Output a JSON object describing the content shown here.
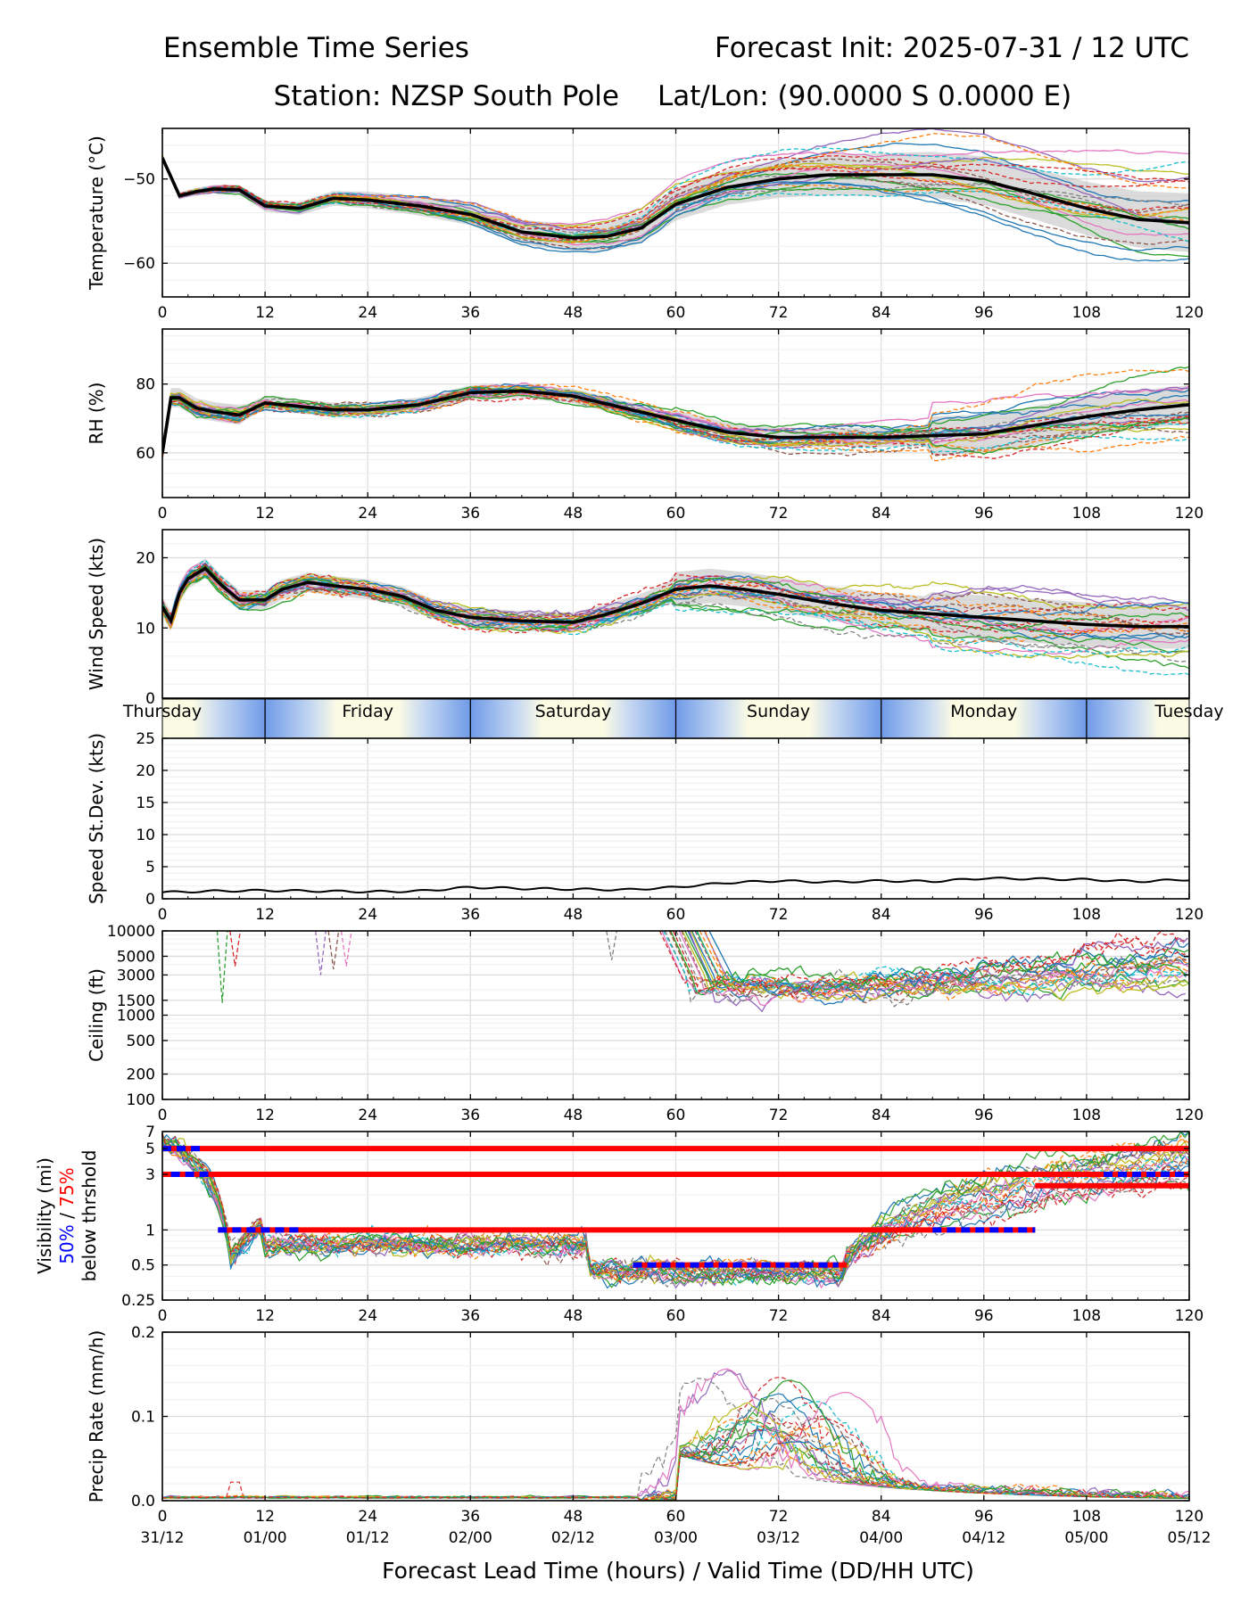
{
  "header": {
    "left_title": "Ensemble Time Series",
    "right_title": "Forecast Init: 2025-07-31 / 12 UTC",
    "station": "Station: NZSP South Pole",
    "latlon": "Lat/Lon: (90.0000 S 0.0000 E)"
  },
  "x_axis": {
    "label": "Forecast Lead Time (hours) / Valid Time (DD/HH UTC)",
    "ticks": [
      "0",
      "12",
      "24",
      "36",
      "48",
      "60",
      "72",
      "84",
      "96",
      "108",
      "120"
    ],
    "valid_times": [
      "31/12",
      "01/00",
      "01/12",
      "02/00",
      "02/12",
      "03/00",
      "03/12",
      "04/00",
      "04/12",
      "05/00",
      "05/12"
    ],
    "range": [
      0,
      120
    ]
  },
  "day_bar": {
    "days": [
      "Thursday",
      "Friday",
      "Saturday",
      "Sunday",
      "Monday",
      "Tuesday"
    ],
    "colors": {
      "night": "#6f9be8",
      "day": "#fbfbe4"
    }
  },
  "visibility_legend": {
    "p50": "50%",
    "sep": " / ",
    "p75": "75%",
    "p50_color": "#0000ff",
    "p75_color": "#ff0000"
  },
  "member_colors": [
    "#1f77b4",
    "#ff7f0e",
    "#2ca02c",
    "#d62728",
    "#9467bd",
    "#8c564b",
    "#e377c2",
    "#7f7f7f",
    "#bcbd22",
    "#17becf"
  ],
  "chart_data": [
    {
      "type": "line",
      "title": "",
      "ylabel": "Temperature (°C)",
      "yticks": [
        "−50",
        "−60"
      ],
      "ylim": [
        -64,
        -44
      ],
      "grid": true,
      "mean_series": {
        "x": [
          0,
          2,
          4,
          6,
          9,
          12,
          16,
          20,
          24,
          30,
          36,
          42,
          48,
          52,
          56,
          60,
          66,
          72,
          78,
          84,
          90,
          96,
          102,
          108,
          114,
          120
        ],
        "values": [
          -47.5,
          -52,
          -51.5,
          -51.2,
          -51.3,
          -53.2,
          -53.5,
          -52.3,
          -52.5,
          -53.2,
          -54.2,
          -56.3,
          -57,
          -56.8,
          -55.8,
          -53,
          -51,
          -50,
          -49.5,
          -49.5,
          -49.5,
          -50.2,
          -51.8,
          -53.5,
          -54.8,
          -55.2
        ]
      },
      "spread_band": true,
      "members": 24
    },
    {
      "type": "line",
      "title": "",
      "ylabel": "RH (%)",
      "yticks": [
        "80",
        "60"
      ],
      "ylim": [
        47,
        96
      ],
      "grid": true,
      "mean_series": {
        "x": [
          0,
          1,
          2,
          4,
          6,
          9,
          12,
          16,
          20,
          24,
          30,
          36,
          42,
          48,
          54,
          60,
          66,
          72,
          78,
          84,
          90,
          96,
          102,
          108,
          114,
          120
        ],
        "values": [
          60,
          76,
          76,
          73,
          72,
          71,
          74.5,
          73.5,
          72.5,
          72.5,
          74,
          77.5,
          78,
          76.5,
          73,
          69.5,
          66,
          64.5,
          64.5,
          64.5,
          65,
          65.5,
          68,
          70.5,
          72.5,
          74
        ]
      },
      "spread_band": true,
      "members": 24
    },
    {
      "type": "line",
      "title": "",
      "ylabel": "Wind Speed (kts)",
      "yticks": [
        "20",
        "10",
        "0"
      ],
      "ylim": [
        0,
        24
      ],
      "grid": true,
      "mean_series": {
        "x": [
          0,
          1,
          2,
          3,
          5,
          7,
          9,
          12,
          14,
          17,
          20,
          24,
          28,
          32,
          36,
          42,
          48,
          52,
          56,
          60,
          64,
          68,
          72,
          78,
          84,
          90,
          96,
          102,
          108,
          114,
          120
        ],
        "values": [
          13,
          11,
          15,
          17,
          18.5,
          16,
          14,
          14,
          15.5,
          16.5,
          16,
          15.5,
          14.5,
          12.5,
          11.5,
          11,
          10.8,
          12,
          13.5,
          15.5,
          16,
          15.5,
          14.8,
          13.5,
          12.5,
          12,
          11.5,
          11,
          10.5,
          10.2,
          10.2
        ]
      },
      "spread_band": true,
      "members": 24
    },
    {
      "type": "line",
      "title": "",
      "ylabel": "Speed St.Dev. (kts)",
      "yticks": [
        "25",
        "20",
        "15",
        "10",
        "5",
        "0"
      ],
      "ylim": [
        0,
        25
      ],
      "grid": true,
      "series": [
        {
          "x": [
            0,
            6,
            12,
            18,
            24,
            30,
            36,
            42,
            48,
            54,
            60,
            66,
            72,
            78,
            84,
            90,
            96,
            102,
            108,
            114,
            120
          ],
          "values": [
            1,
            1.2,
            1.3,
            1.2,
            1.1,
            1.2,
            1.8,
            1.6,
            1.5,
            1.4,
            1.8,
            2.5,
            2.8,
            2.6,
            2.8,
            2.7,
            3.2,
            3.1,
            3,
            2.7,
            3
          ]
        }
      ]
    },
    {
      "type": "line",
      "title": "",
      "ylabel": "Ceiling (ft)",
      "yticks": [
        "10000",
        "5000",
        "3000",
        "1500",
        "1000",
        "500",
        "200",
        "100"
      ],
      "ylim": [
        100,
        10000
      ],
      "yscale": "log",
      "grid": true,
      "members": 24
    },
    {
      "type": "line",
      "title": "",
      "ylabel": "Visibility (mi)",
      "ylabel2": "below thrshold",
      "yticks": [
        "7",
        "5",
        "3",
        "1",
        "0.5",
        "0.25"
      ],
      "ylim": [
        0.25,
        7
      ],
      "yscale": "log",
      "grid": true,
      "threshold_lines": [
        5,
        3,
        1,
        0.5
      ],
      "members": 24
    },
    {
      "type": "line",
      "title": "",
      "ylabel": "Precip Rate (mm/h)",
      "yticks": [
        "0.2",
        "0.1",
        "0.0"
      ],
      "ylim": [
        0,
        0.2
      ],
      "grid": true,
      "members": 24
    }
  ]
}
